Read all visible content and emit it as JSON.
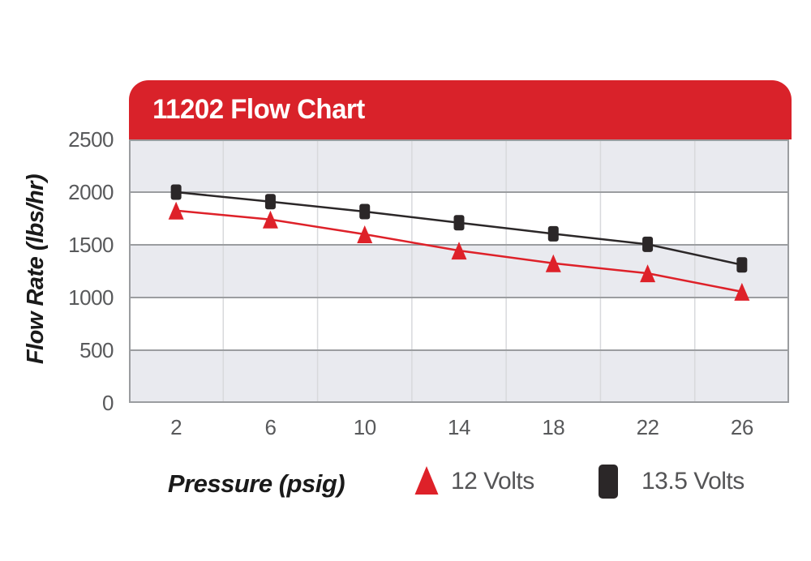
{
  "title": "11202 Flow Chart",
  "colors": {
    "banner_red": "#d9222a",
    "series_red": "#de2129",
    "series_black": "#2b2728",
    "band_gray": "#e9eaef",
    "grid_gray": "#9b9da0",
    "vgrid_gray": "#d8d9dc",
    "tick_text": "#58595b",
    "axis_text": "#1a1a1a"
  },
  "y_axis": {
    "ticks": [
      "2500",
      "2000",
      "1500",
      "1000",
      "500",
      "0"
    ]
  },
  "x_axis": {
    "ticks": [
      "2",
      "6",
      "10",
      "14",
      "18",
      "22",
      "26"
    ]
  },
  "chart_data": {
    "type": "line",
    "title": "11202 Flow Chart",
    "xlabel": "Pressure (psig)",
    "ylabel": "Flow Rate (lbs/hr)",
    "x": [
      2,
      6,
      10,
      14,
      18,
      22,
      26
    ],
    "series": [
      {
        "name": "12 Volts",
        "marker": "triangle",
        "color": "#de2129",
        "values": [
          1825,
          1740,
          1600,
          1445,
          1325,
          1230,
          1055
        ]
      },
      {
        "name": "13.5 Volts",
        "marker": "square",
        "color": "#2b2728",
        "values": [
          2000,
          1910,
          1815,
          1710,
          1605,
          1505,
          1310
        ]
      }
    ],
    "ylim": [
      0,
      2500
    ],
    "ytick_step": 500,
    "xlim_categories": true,
    "grid": "horizontal-major + vertical-category-boundaries",
    "band_fill": "alternating gray/white horizontal bands",
    "legend_position": "bottom"
  }
}
